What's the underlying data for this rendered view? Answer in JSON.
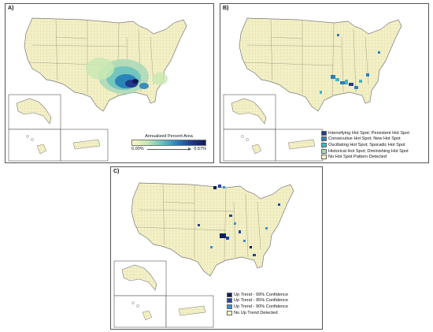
{
  "panels": {
    "a": {
      "label": "A)",
      "legend": {
        "title": "Annualized Percent Area",
        "min": "0.00%",
        "max": "0.57%",
        "colors": [
          "#fbf9c8",
          "#c8e9b2",
          "#6cc3be",
          "#2b84b9",
          "#243a8c",
          "#101a56"
        ]
      }
    },
    "b": {
      "label": "B)",
      "legend": [
        {
          "label": "Intensifying Hot Spot; Persistent Hot Spot",
          "color": "#223b8e"
        },
        {
          "label": "Consecutive Hot Spot; New Hot Spot",
          "color": "#2c7fb8"
        },
        {
          "label": "Oscillating Hot Spot; Sporadic Hot Spot",
          "color": "#41b6c4"
        },
        {
          "label": "Historical Hot Spot; Diminishing Hot Spot",
          "color": "#a1dab4"
        },
        {
          "label": "No Hot Spot Pattern Detected",
          "color": "#fbf9c8"
        }
      ]
    },
    "c": {
      "label": "C)",
      "legend": [
        {
          "label": "Up Trend - 99% Confidence",
          "color": "#0c1f5c"
        },
        {
          "label": "Up Trend - 95% Confidence",
          "color": "#2444a0"
        },
        {
          "label": "Up Trend - 90% Confidence",
          "color": "#3c8dcc"
        },
        {
          "label": "No Up Trend Detected",
          "color": "#fbf9c8"
        }
      ]
    }
  },
  "colors": {
    "base": "#f4f1c5",
    "border": "#8a8a7a"
  }
}
